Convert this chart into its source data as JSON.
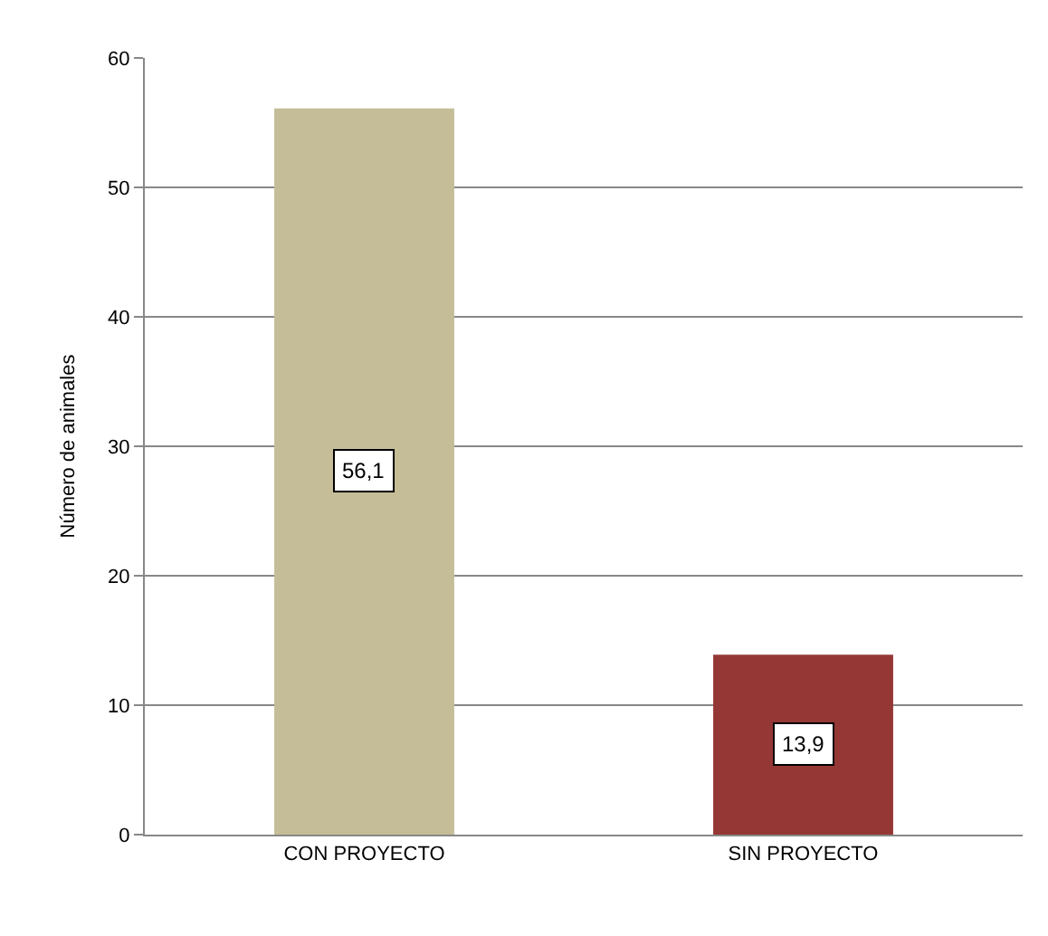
{
  "chart_data": {
    "type": "bar",
    "ylabel": "Número de animales",
    "categories": [
      "CON PROYECTO",
      "SIN PROYECTO"
    ],
    "values": [
      56.1,
      13.9
    ],
    "colors": [
      "#c4bd97",
      "#953735"
    ],
    "value_labels": [
      "56,1",
      "13,9"
    ],
    "ylim": [
      0,
      60
    ],
    "yticks": [
      0,
      10,
      20,
      30,
      40,
      50,
      60
    ],
    "grid": "y"
  }
}
